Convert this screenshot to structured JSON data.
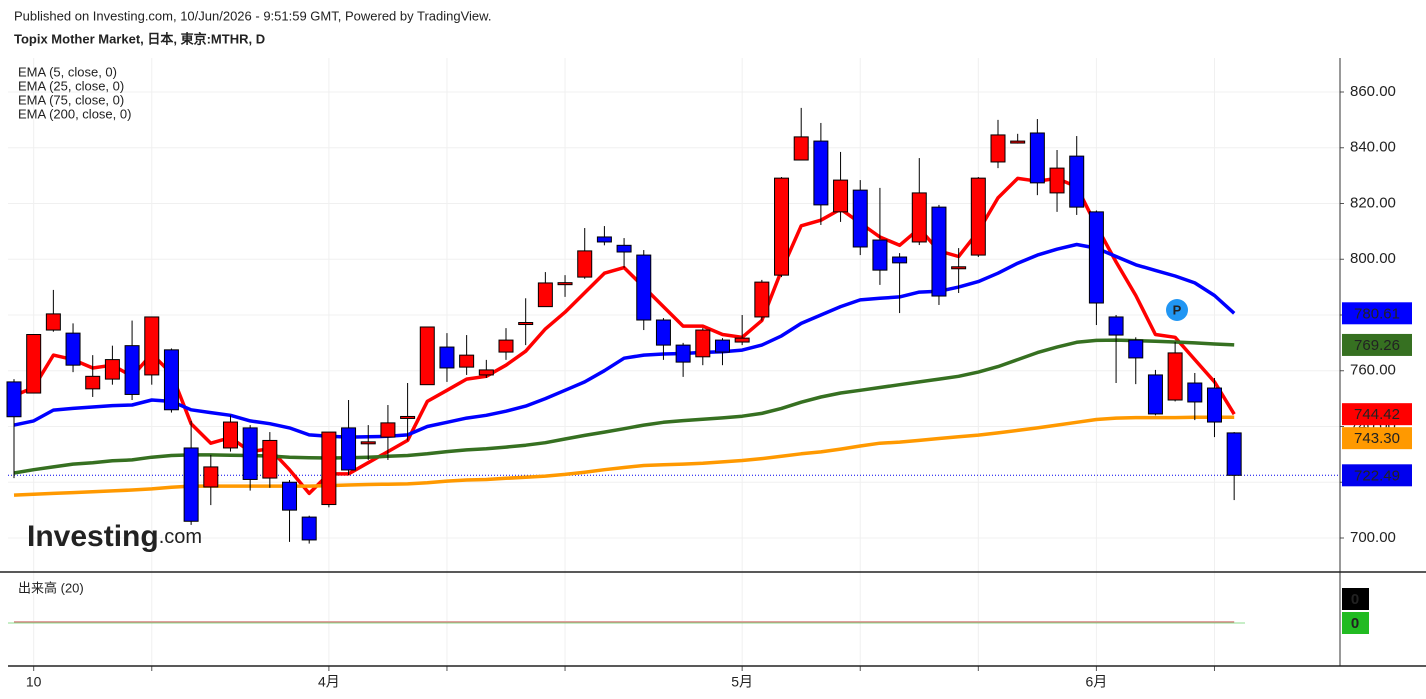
{
  "chart_data": {
    "type": "candlestick",
    "published": "Published on Investing.com, 10/Jun/2026 - 9:51:59 GMT, Powered by TradingView.",
    "title": "Topix Mother Market, 日本, 東京:MTHR, D",
    "watermark": {
      "main": "Investing",
      "suffix": ".com"
    },
    "badge": "P",
    "categories": [
      null,
      "10",
      null,
      null,
      null,
      null,
      null,
      null,
      null,
      null,
      null,
      null,
      null,
      null,
      null,
      null,
      "4月",
      null,
      null,
      null,
      null,
      null,
      null,
      null,
      null,
      null,
      null,
      null,
      null,
      null,
      null,
      null,
      null,
      null,
      null,
      null,
      null,
      "5月",
      null,
      null,
      null,
      null,
      null,
      null,
      null,
      null,
      null,
      null,
      null,
      null,
      null,
      null,
      null,
      null,
      null,
      "6月",
      null,
      null,
      null,
      null,
      null,
      null,
      null
    ],
    "ohlc": {
      "up_color": "#ff0000",
      "down_color": "#0000ff",
      "last_color": "#0000ee",
      "open": [
        756,
        752,
        774.6,
        773.5,
        753.5,
        757,
        769,
        758.5,
        767.5,
        732.3,
        718.3,
        732.3,
        739.5,
        721.5,
        720,
        707.5,
        712,
        739.5,
        734,
        736.2,
        743.3,
        755,
        768.5,
        761.3,
        758.5,
        766.7,
        777,
        783,
        791.3,
        793.6,
        808,
        805,
        801.5,
        778.2,
        769.2,
        765,
        771,
        770.3,
        779.3,
        794.3,
        835.6,
        842.4,
        817,
        824.8,
        806.9,
        800.8,
        806.2,
        818.7,
        797,
        801.5,
        834.9,
        842,
        845.3,
        823.8,
        837,
        817,
        779.3,
        771,
        758.5,
        749.5,
        755.6,
        753.8,
        737.7
      ],
      "high": [
        757,
        773,
        789,
        777,
        765.6,
        769,
        778,
        779.3,
        768,
        742,
        729.8,
        744,
        740.5,
        738,
        720.8,
        708,
        738,
        749.5,
        740.5,
        747.7,
        755.6,
        775.7,
        773.5,
        772.8,
        763.9,
        775.3,
        786,
        795.4,
        794.3,
        811.2,
        811.9,
        807.6,
        803.3,
        778.9,
        770,
        775.3,
        771.7,
        780,
        792.6,
        829.5,
        854.3,
        848.9,
        838.5,
        828.4,
        825.6,
        802.2,
        836.3,
        819.5,
        804,
        829.5,
        850,
        845,
        850.3,
        839.2,
        844.2,
        817.5,
        780,
        772,
        760.3,
        770.3,
        759.2,
        757.4,
        738
      ],
      "low": [
        721.5,
        752,
        774,
        759.5,
        750.6,
        755,
        749.5,
        755,
        745,
        704.7,
        711.8,
        731,
        717,
        718,
        698.6,
        698,
        711,
        722.6,
        728,
        728,
        735,
        754.9,
        756,
        758.5,
        757.4,
        763.9,
        769.2,
        782.9,
        786.5,
        793,
        805,
        796.9,
        774.6,
        763.9,
        757.8,
        762,
        762,
        769.2,
        778,
        793.6,
        835.6,
        812.3,
        813.4,
        801.5,
        790.8,
        780.7,
        805.1,
        783.6,
        787.9,
        800.8,
        832.7,
        841.5,
        823,
        817,
        815.9,
        776.4,
        755.6,
        755.2,
        744,
        749,
        742.3,
        736.2,
        713.6
      ],
      "close": [
        743.5,
        773,
        780.4,
        762,
        758,
        764,
        751.5,
        779.3,
        746,
        706,
        725.5,
        741.6,
        721,
        735,
        710,
        699.3,
        738,
        724.4,
        734.5,
        741.3,
        743.6,
        775.7,
        761,
        765.6,
        760.3,
        771,
        777.3,
        791.5,
        791.6,
        803,
        806.2,
        802.6,
        778.2,
        769.2,
        763.1,
        774.6,
        766.7,
        771.7,
        791.8,
        829.1,
        843.9,
        819.5,
        828.4,
        804.4,
        796.1,
        798.7,
        823.8,
        786.8,
        797.3,
        829.1,
        844.6,
        842.4,
        827.4,
        832.7,
        818.7,
        784.3,
        772.8,
        764.6,
        744.5,
        766.4,
        748.8,
        741.6,
        722.49
      ]
    },
    "series": [
      {
        "name": "EMA (5, close, 0)",
        "color": "#ff0000",
        "values": [
          751,
          754,
          765.6,
          764,
          761,
          762,
          758,
          766,
          759,
          741,
          734,
          736,
          731,
          732,
          724.5,
          716,
          723,
          723,
          727,
          731,
          735,
          749,
          753,
          757,
          758,
          762,
          767,
          775,
          781,
          788,
          795,
          797,
          790,
          783,
          776,
          776,
          773,
          772,
          778,
          796,
          812,
          814,
          818,
          813,
          808,
          805,
          811,
          803,
          801,
          810,
          822,
          829,
          828,
          829,
          826,
          812,
          799,
          787,
          773,
          772,
          764,
          756,
          744.42
        ]
      },
      {
        "name": "EMA (25, close, 0)",
        "color": "#0000ff",
        "values": [
          740.5,
          742,
          745.9,
          746.5,
          747,
          747.5,
          747.7,
          749.5,
          749,
          746,
          745,
          744,
          742,
          741,
          739.5,
          737,
          736.5,
          736.2,
          736.3,
          736.5,
          737,
          740,
          741.5,
          743,
          744,
          745.5,
          747.3,
          750,
          753,
          756,
          760,
          764.5,
          765.6,
          766,
          766.2,
          766.6,
          766.8,
          767.4,
          769.2,
          772.5,
          777,
          780,
          783,
          785.4,
          786,
          786.5,
          788.2,
          788.5,
          790,
          792,
          795,
          798.6,
          801.5,
          803.6,
          805.3,
          804,
          801,
          798,
          796,
          794,
          791.5,
          787,
          780.61
        ]
      },
      {
        "name": "EMA (75, close, 0)",
        "color": "#367021",
        "values": [
          723.3,
          724.5,
          725.5,
          726.5,
          727,
          727.7,
          728,
          729,
          729.6,
          729.8,
          729.8,
          729.7,
          729.6,
          729.4,
          729,
          728.8,
          728.7,
          728.8,
          729,
          729.3,
          729.6,
          730.2,
          731,
          731.6,
          732,
          732.6,
          733.3,
          734.2,
          735.5,
          736.8,
          738,
          739.2,
          740.5,
          741.5,
          742.1,
          742.6,
          743.1,
          743.7,
          744.7,
          746.5,
          748.7,
          750.6,
          752,
          753,
          754,
          755,
          756,
          757,
          758,
          759.5,
          761.5,
          764,
          766.5,
          768.5,
          770.2,
          770.9,
          771,
          770.8,
          770.6,
          770.3,
          770,
          769.6,
          769.26
        ]
      },
      {
        "name": "EMA (200, close, 0)",
        "color": "#ff9900",
        "values": [
          715.4,
          715.7,
          716,
          716.3,
          716.6,
          716.9,
          717.2,
          717.6,
          718.2,
          718.6,
          718.6,
          718.6,
          718.6,
          718.6,
          718.6,
          718.6,
          718.8,
          719,
          719.2,
          719.3,
          719.4,
          719.8,
          720.4,
          720.8,
          721,
          721.4,
          721.8,
          722.2,
          722.8,
          723.6,
          724.5,
          725.3,
          726,
          726.3,
          726.5,
          726.8,
          727.3,
          727.8,
          728.5,
          729.3,
          730.2,
          730.9,
          731.9,
          733,
          734,
          734.4,
          735,
          735.7,
          736.3,
          736.9,
          737.7,
          738.6,
          739.5,
          740.5,
          741.5,
          742.5,
          743,
          743.2,
          743.2,
          743.2,
          743.3,
          743.3,
          743.3
        ],
        "value_labels": [
          null,
          null,
          null,
          null,
          null,
          null,
          null,
          null,
          null,
          null,
          null,
          null,
          null,
          null,
          null,
          null,
          null,
          null,
          null,
          null,
          null,
          null,
          null,
          null,
          null,
          null,
          null,
          null,
          null,
          null,
          null,
          null,
          null,
          null,
          null,
          null,
          null,
          null,
          null,
          null,
          null,
          null,
          null,
          null,
          null,
          null,
          null,
          null,
          null,
          null,
          null,
          null,
          null,
          null,
          null,
          null,
          null,
          null,
          null,
          null,
          null,
          null,
          "743.30"
        ]
      }
    ],
    "ylim": [
      687.8,
      872.2
    ],
    "yticks": [
      {
        "value": 700,
        "label": "700.00"
      },
      {
        "value": 720,
        "label": "720.00"
      },
      {
        "value": 740,
        "label": "740.00"
      },
      {
        "value": 760,
        "label": "760.00"
      },
      {
        "value": 780,
        "label": "780.00"
      },
      {
        "value": 800,
        "label": "800.00"
      },
      {
        "value": 820,
        "label": "820.00"
      },
      {
        "value": 840,
        "label": "840.00"
      },
      {
        "value": 860,
        "label": "860.00"
      }
    ],
    "grid": true,
    "volume": {
      "title": "出来高 (20)",
      "color": "#e0a0a0",
      "average_color": "#22bb22",
      "values": [
        0,
        0,
        0,
        0,
        0,
        0,
        0,
        0,
        0,
        0,
        0,
        0,
        0,
        0,
        0,
        0,
        0,
        0,
        0,
        0,
        0,
        0,
        0,
        0,
        0,
        0,
        0,
        0,
        0,
        0,
        0,
        0,
        0,
        0,
        0,
        0,
        0,
        0,
        0,
        0,
        0,
        0,
        0,
        0,
        0,
        0,
        0,
        0,
        0,
        0,
        0,
        0,
        0,
        0,
        0,
        0,
        0,
        0,
        0,
        0,
        0,
        0,
        0
      ],
      "average": 0
    }
  }
}
